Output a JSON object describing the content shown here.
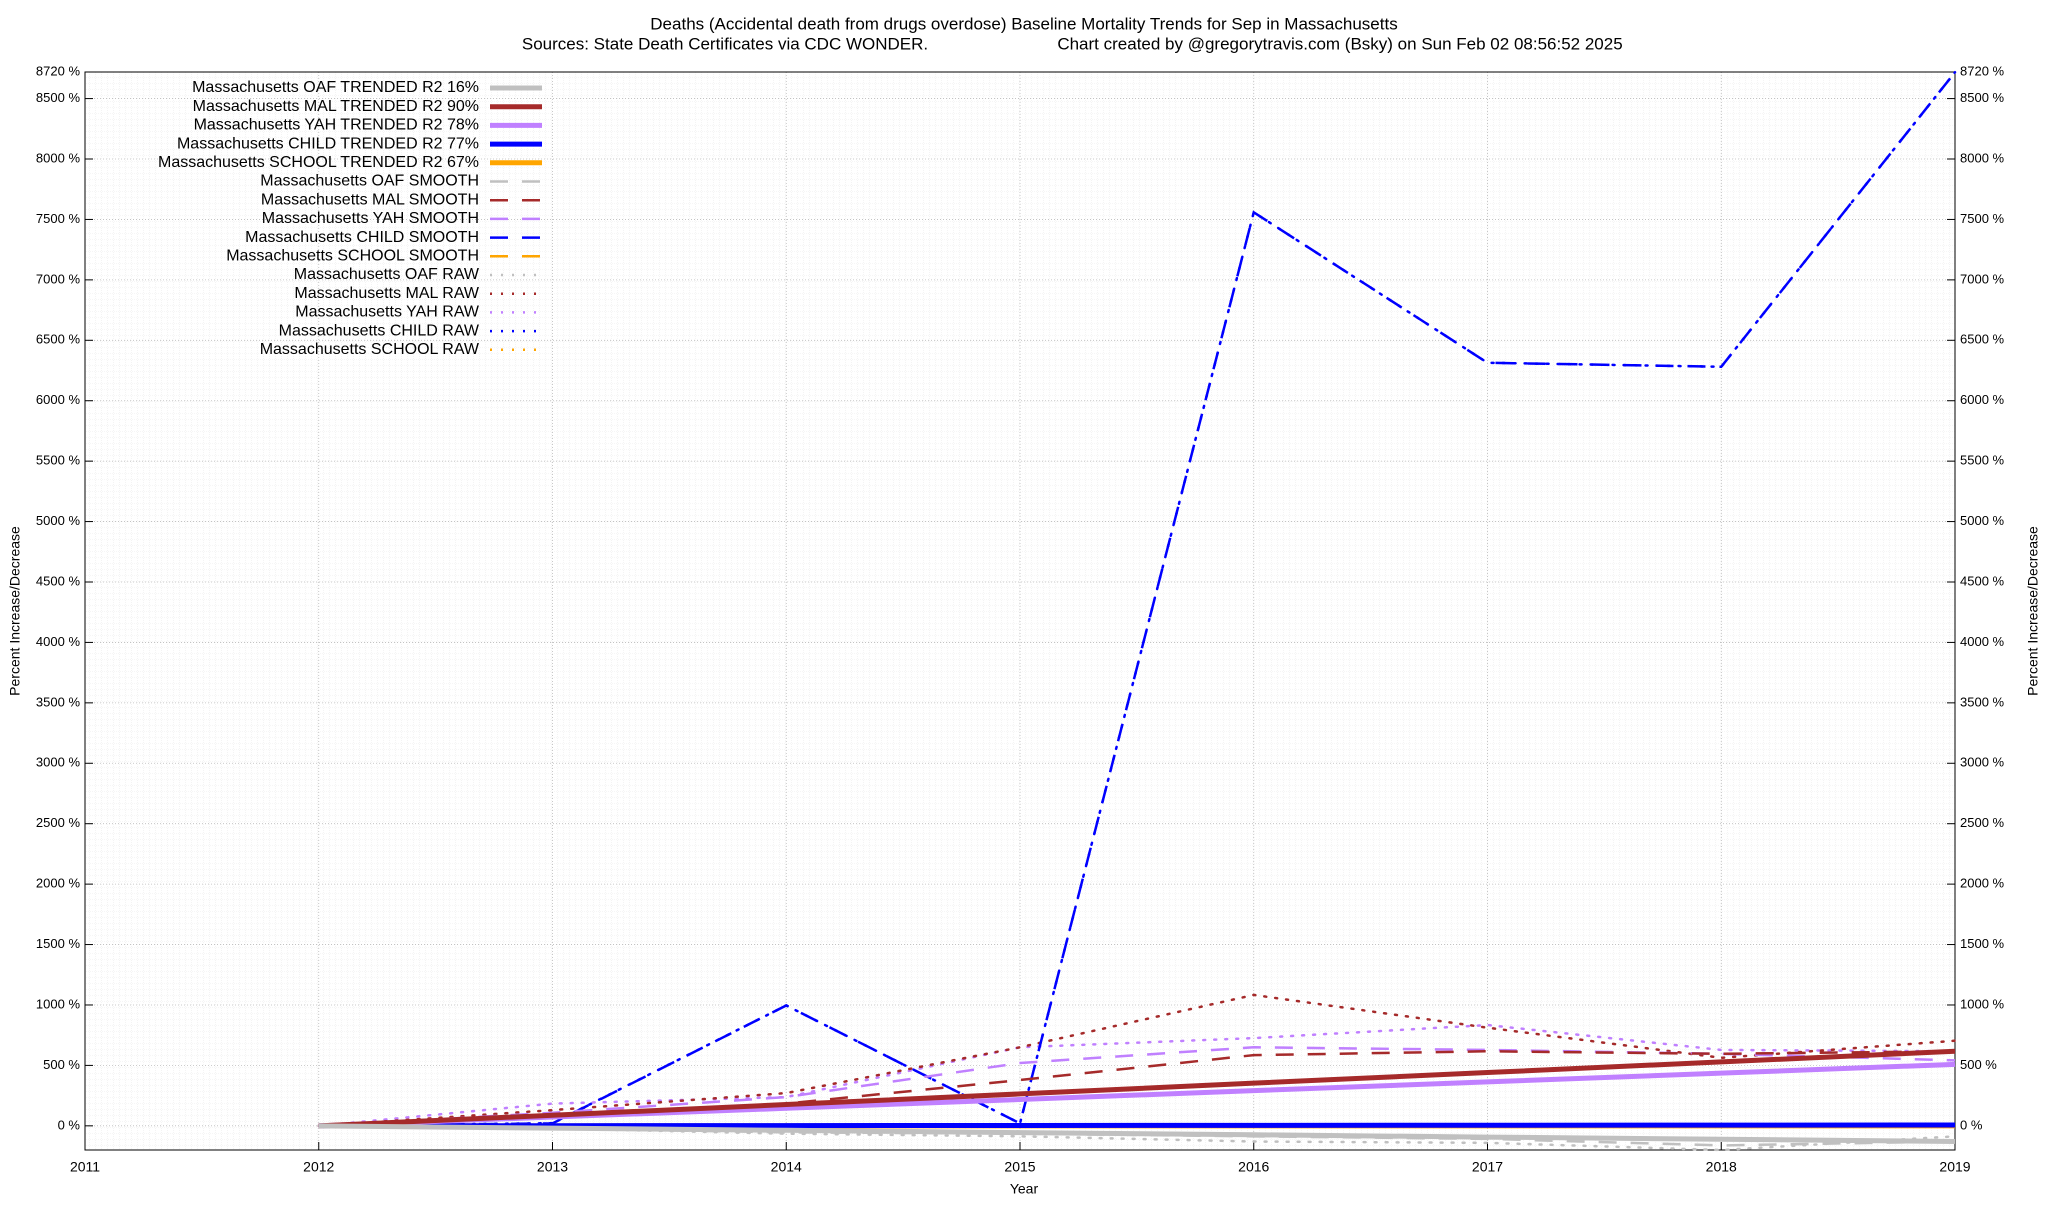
{
  "chart_data": {
    "type": "line",
    "title": "Deaths (Accidental death from drugs overdose)  Baseline Mortality Trends for Sep in Massachusetts",
    "source": "Sources: State Death Certificates via CDC WONDER.",
    "credit": "Chart created by @gregorytravis.com (Bsky) on Sun Feb 02 08:56:52 2025",
    "x_label": "Year",
    "y_label": "Percent Increase/Decrease",
    "y2_label": "Percent Increase/Decrease",
    "x": [
      2012,
      2013,
      2014,
      2015,
      2016,
      2017,
      2018,
      2019
    ],
    "xlim": [
      2011,
      2019
    ],
    "xticks": [
      2011,
      2012,
      2013,
      2014,
      2015,
      2016,
      2017,
      2018,
      2019
    ],
    "ylim": [
      -200,
      8720
    ],
    "yticks": [
      {
        "value": 0,
        "label": "0 %"
      },
      {
        "value": 500,
        "label": "500 %"
      },
      {
        "value": 1000,
        "label": "1000 %"
      },
      {
        "value": 1500,
        "label": "1500 %"
      },
      {
        "value": 2000,
        "label": "2000 %"
      },
      {
        "value": 2500,
        "label": "2500 %"
      },
      {
        "value": 3000,
        "label": "3000 %"
      },
      {
        "value": 3500,
        "label": "3500 %"
      },
      {
        "value": 4000,
        "label": "4000 %"
      },
      {
        "value": 4500,
        "label": "4500 %"
      },
      {
        "value": 5000,
        "label": "5000 %"
      },
      {
        "value": 5500,
        "label": "5500 %"
      },
      {
        "value": 6000,
        "label": "6000 %"
      },
      {
        "value": 6500,
        "label": "6500 %"
      },
      {
        "value": 7000,
        "label": "7000 %"
      },
      {
        "value": 7500,
        "label": "7500 %"
      },
      {
        "value": 8000,
        "label": "8000 %"
      },
      {
        "value": 8500,
        "label": "8500 %"
      },
      {
        "value": 8720,
        "label": "8720 %"
      }
    ],
    "grid": true,
    "legend": "top-left",
    "series": [
      {
        "name": "Massachusetts OAF TRENDED R2  16%",
        "color": "#c0c0c0",
        "style": "solid",
        "width": 5,
        "values": [
          0,
          -19,
          -37,
          -56,
          -74,
          -93,
          -111,
          -130
        ]
      },
      {
        "name": "Massachusetts MAL TRENDED R2  90%",
        "color": "#a52a2a",
        "style": "solid",
        "width": 5,
        "values": [
          0,
          88,
          176,
          264,
          353,
          441,
          529,
          617
        ]
      },
      {
        "name": "Massachusetts YAH TRENDED R2  78%",
        "color": "#c080ff",
        "style": "solid",
        "width": 5,
        "values": [
          0,
          73,
          145,
          218,
          291,
          364,
          436,
          509
        ]
      },
      {
        "name": "Massachusetts CHILD TRENDED R2  77%",
        "color": "#0000ff",
        "style": "solid",
        "width": 5,
        "values": [
          0,
          1,
          2,
          3,
          4,
          5,
          6,
          7
        ]
      },
      {
        "name": "Massachusetts SCHOOL TRENDED R2  67%",
        "color": "#ffa500",
        "style": "solid",
        "width": 5,
        "values": [
          0,
          0,
          0,
          0,
          0,
          0,
          0,
          0
        ]
      },
      {
        "name": "Massachusetts OAF SMOOTH",
        "color": "#c0c0c0",
        "style": "dashed",
        "width": 2.5,
        "values": [
          0,
          -22,
          -54,
          -65,
          -87,
          -108,
          -162,
          -130
        ]
      },
      {
        "name": "Massachusetts MAL SMOOTH",
        "color": "#a52a2a",
        "style": "dashed",
        "width": 2.5,
        "values": [
          0,
          87,
          184,
          379,
          585,
          617,
          596,
          617
        ]
      },
      {
        "name": "Massachusetts YAH SMOOTH",
        "color": "#c080ff",
        "style": "dashed",
        "width": 2.5,
        "values": [
          0,
          108,
          238,
          520,
          650,
          628,
          596,
          542
        ]
      },
      {
        "name": "Massachusetts CHILD SMOOTH",
        "color": "#0000ff",
        "style": "dashed",
        "width": 2.5,
        "values": [
          0,
          20,
          996,
          20,
          7559,
          6314,
          6281,
          8718
        ]
      },
      {
        "name": "Massachusetts SCHOOL SMOOTH",
        "color": "#ffa500",
        "style": "dashed",
        "width": 2.5,
        "values": [
          0,
          0,
          0,
          0,
          0,
          0,
          0,
          0
        ]
      },
      {
        "name": "Massachusetts OAF RAW",
        "color": "#c0c0c0",
        "style": "dotted",
        "width": 2.5,
        "values": [
          0,
          -22,
          -65,
          -87,
          -130,
          -141,
          -200,
          -87
        ]
      },
      {
        "name": "Massachusetts MAL RAW",
        "color": "#a52a2a",
        "style": "dotted",
        "width": 2.5,
        "values": [
          0,
          130,
          271,
          650,
          1083,
          812,
          563,
          704
        ]
      },
      {
        "name": "Massachusetts YAH RAW",
        "color": "#c080ff",
        "style": "dotted",
        "width": 2.5,
        "values": [
          0,
          184,
          238,
          650,
          726,
          834,
          628,
          617
        ]
      },
      {
        "name": "Massachusetts CHILD RAW",
        "color": "#0000ff",
        "style": "dotted",
        "width": 2.5,
        "values": [
          0,
          22,
          996,
          20,
          7559,
          6314,
          6281,
          8718
        ]
      },
      {
        "name": "Massachusetts SCHOOL RAW",
        "color": "#ffa500",
        "style": "dotted",
        "width": 2.5,
        "values": [
          0,
          0,
          0,
          0,
          0,
          0,
          0,
          0
        ]
      }
    ]
  }
}
